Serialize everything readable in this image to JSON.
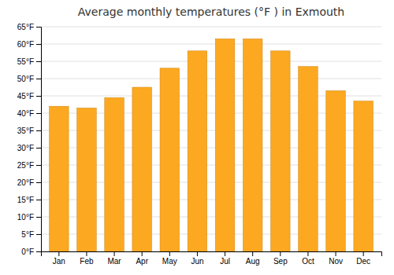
{
  "chart_data": {
    "type": "bar",
    "title": "Average monthly temperatures (°F ) in Exmouth",
    "categories": [
      "Jan",
      "Feb",
      "Mar",
      "Apr",
      "May",
      "Jun",
      "Jul",
      "Aug",
      "Sep",
      "Oct",
      "Nov",
      "Dec"
    ],
    "values": [
      42,
      41.5,
      44.5,
      47.5,
      53,
      58,
      61.5,
      61.5,
      58,
      53.5,
      46.5,
      43.5
    ],
    "color": "#FCA820",
    "ylim": [
      0,
      65
    ],
    "yticks": [
      {
        "value": 0,
        "label": "0°F"
      },
      {
        "value": 5,
        "label": "5°F"
      },
      {
        "value": 10,
        "label": "10°F"
      },
      {
        "value": 15,
        "label": "15°F"
      },
      {
        "value": 20,
        "label": "20°F"
      },
      {
        "value": 25,
        "label": "25°F"
      },
      {
        "value": 30,
        "label": "30°F"
      },
      {
        "value": 35,
        "label": "35°F"
      },
      {
        "value": 40,
        "label": "40°F"
      },
      {
        "value": 45,
        "label": "45°F"
      },
      {
        "value": 50,
        "label": "50°F"
      },
      {
        "value": 55,
        "label": "55°F"
      },
      {
        "value": 60,
        "label": "60°F"
      },
      {
        "value": 65,
        "label": "65°F"
      }
    ],
    "grid": true
  }
}
